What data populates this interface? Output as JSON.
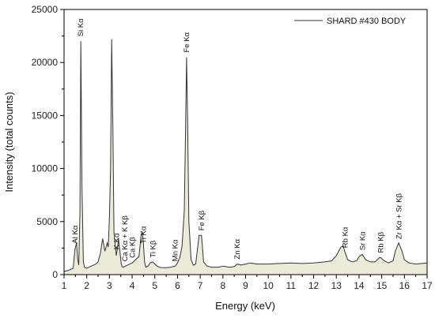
{
  "chart_data": {
    "type": "area",
    "xlabel": "Energy (keV)",
    "ylabel": "Intensity (total counts)",
    "xlim": [
      1,
      17
    ],
    "ylim": [
      0,
      25000
    ],
    "x_ticks": [
      "1",
      "2",
      "3",
      "4",
      "5",
      "6",
      "7",
      "8",
      "9",
      "10",
      "11",
      "12",
      "13",
      "14",
      "15",
      "16",
      "17"
    ],
    "y_ticks": [
      "0",
      "5000",
      "10000",
      "15000",
      "20000",
      "25000"
    ],
    "legend": {
      "position": "top-right",
      "entries": [
        "SHARD #430 BODY"
      ]
    },
    "series": [
      {
        "name": "SHARD #430 BODY",
        "color": "#333333",
        "fill": "#ecebd9",
        "x": [
          1.0,
          1.2,
          1.4,
          1.48,
          1.55,
          1.6,
          1.65,
          1.7,
          1.74,
          1.79,
          1.85,
          1.9,
          2.0,
          2.1,
          2.2,
          2.3,
          2.4,
          2.5,
          2.6,
          2.7,
          2.8,
          2.85,
          2.9,
          2.95,
          3.0,
          3.05,
          3.1,
          3.15,
          3.2,
          3.3,
          3.35,
          3.4,
          3.45,
          3.52,
          3.55,
          3.6,
          3.65,
          3.7,
          3.8,
          3.9,
          4.0,
          4.1,
          4.2,
          4.3,
          4.4,
          4.45,
          4.5,
          4.55,
          4.6,
          4.7,
          4.8,
          4.9,
          5.0,
          5.1,
          5.2,
          5.3,
          5.5,
          5.7,
          5.9,
          6.0,
          6.1,
          6.2,
          6.3,
          6.35,
          6.4,
          6.45,
          6.5,
          6.6,
          6.7,
          6.8,
          6.9,
          6.95,
          7.06,
          7.15,
          7.3,
          7.5,
          7.8,
          8.0,
          8.3,
          8.5,
          8.63,
          8.8,
          9.0,
          9.2,
          9.5,
          10.0,
          10.5,
          11.0,
          11.5,
          12.0,
          12.5,
          12.8,
          13.0,
          13.2,
          13.3,
          13.4,
          13.5,
          13.7,
          13.9,
          14.0,
          14.14,
          14.3,
          14.5,
          14.7,
          14.9,
          14.96,
          15.1,
          15.3,
          15.5,
          15.6,
          15.75,
          15.9,
          16.0,
          16.2,
          16.5,
          17.0
        ],
        "y": [
          300,
          400,
          600,
          2400,
          3000,
          1500,
          900,
          6000,
          22000,
          8000,
          1200,
          700,
          600,
          700,
          800,
          900,
          1000,
          1200,
          2000,
          3400,
          2200,
          2600,
          3000,
          2600,
          5500,
          10000,
          22200,
          14000,
          4000,
          1800,
          2400,
          3400,
          2400,
          1000,
          800,
          700,
          750,
          800,
          900,
          1000,
          1100,
          1300,
          1500,
          1700,
          3800,
          4000,
          2800,
          1200,
          700,
          800,
          1100,
          1200,
          1000,
          800,
          700,
          650,
          650,
          700,
          800,
          1100,
          1600,
          2700,
          6000,
          13000,
          20500,
          14000,
          5000,
          1400,
          900,
          1000,
          2800,
          3700,
          3700,
          1200,
          800,
          700,
          700,
          800,
          700,
          750,
          1000,
          900,
          1000,
          1100,
          1000,
          1000,
          1050,
          1100,
          1050,
          1100,
          1200,
          1300,
          1800,
          2600,
          2700,
          2000,
          1400,
          1200,
          1300,
          1700,
          1900,
          1400,
          1200,
          1200,
          1600,
          1600,
          1300,
          1100,
          1300,
          2200,
          3000,
          2200,
          1400,
          1100,
          1000,
          1100
        ]
      }
    ],
    "annotations": [
      {
        "text": "Al Kα",
        "x": 1.49
      },
      {
        "text": "Si Kα",
        "x": 1.74
      },
      {
        "text": "K Kα",
        "x": 3.31
      },
      {
        "text": "Ca Kα + K Kβ",
        "x": 3.69
      },
      {
        "text": "Ca Kβ",
        "x": 4.01
      },
      {
        "text": "Ti Kα",
        "x": 4.51
      },
      {
        "text": "Ti Kβ",
        "x": 4.93
      },
      {
        "text": "Mn Kα",
        "x": 5.9
      },
      {
        "text": "Fe Kα",
        "x": 6.4
      },
      {
        "text": "Fe Kβ",
        "x": 7.06
      },
      {
        "text": "Zn Kα",
        "x": 8.63
      },
      {
        "text": "Rb Kα",
        "x": 13.39
      },
      {
        "text": "Sr Kα",
        "x": 14.16
      },
      {
        "text": "Rb Kβ",
        "x": 14.96
      },
      {
        "text": "Zr Kα + Sr Kβ",
        "x": 15.77
      }
    ]
  }
}
